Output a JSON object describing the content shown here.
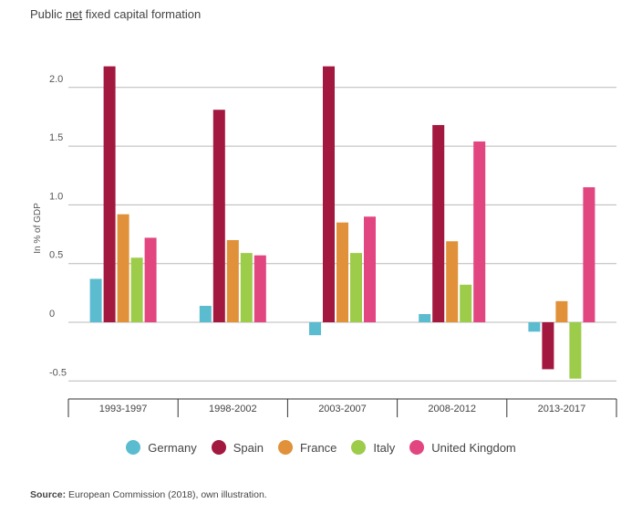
{
  "title_parts": {
    "before": "Public ",
    "underlined": "net",
    "after": " fixed capital formation"
  },
  "source": {
    "label": "Source:",
    "text": " European Commission (2018), own illustration."
  },
  "colors": {
    "Germany": "#5bbcd0",
    "Spain": "#a3183f",
    "France": "#e0913a",
    "Italy": "#9ccc4a",
    "United Kingdom": "#e14681"
  },
  "chart_data": {
    "type": "bar",
    "title": "Public net fixed capital formation",
    "ylabel": "In % of GDP",
    "xlabel": "",
    "ylim": [
      -0.5,
      2.0
    ],
    "yticks": [
      "2.0",
      "1.5",
      "1.0",
      "0.5",
      "0",
      "-0.5"
    ],
    "ytick_values": [
      2.0,
      1.5,
      1.0,
      0.5,
      0,
      -0.5
    ],
    "grid": true,
    "legend_position": "bottom",
    "categories": [
      "1993-1997",
      "1998-2002",
      "2003-2007",
      "2008-2012",
      "2013-2017"
    ],
    "series": [
      {
        "name": "Germany",
        "values": [
          0.37,
          0.14,
          -0.11,
          0.07,
          -0.08
        ]
      },
      {
        "name": "Spain",
        "values": [
          2.18,
          1.81,
          2.18,
          1.68,
          -0.4
        ]
      },
      {
        "name": "France",
        "values": [
          0.92,
          0.7,
          0.85,
          0.69,
          0.18
        ]
      },
      {
        "name": "Italy",
        "values": [
          0.55,
          0.59,
          0.59,
          0.32,
          -0.48
        ]
      },
      {
        "name": "United Kingdom",
        "values": [
          0.72,
          0.57,
          0.9,
          1.54,
          1.15
        ]
      }
    ]
  }
}
